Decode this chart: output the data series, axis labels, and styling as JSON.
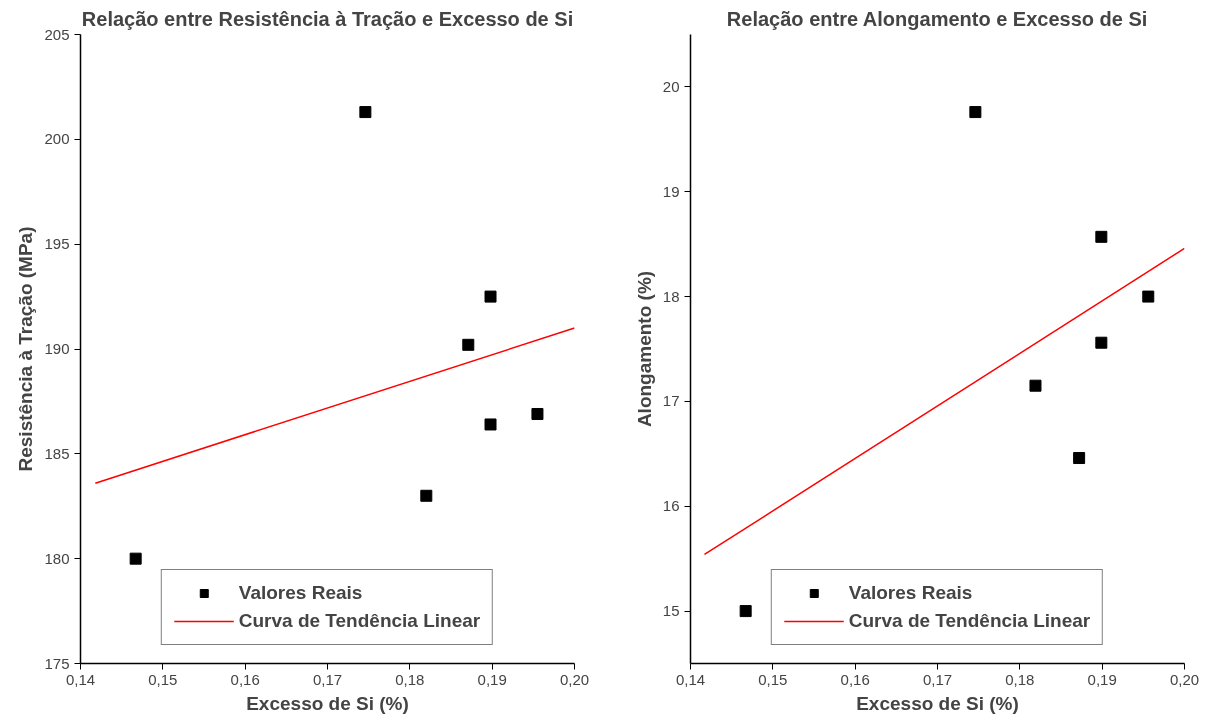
{
  "chart_data": [
    {
      "type": "scatter",
      "title": "Relação entre Resistência à Tração e Excesso de Si",
      "xlabel": "Excesso de Si (%)",
      "ylabel": "Resistência à Tração (MPa)",
      "xlim": [
        0.14,
        0.2
      ],
      "ylim": [
        175,
        205
      ],
      "xticks": [
        {
          "value": 0.14,
          "label": "0,14"
        },
        {
          "value": 0.15,
          "label": "0,15"
        },
        {
          "value": 0.16,
          "label": "0,16"
        },
        {
          "value": 0.17,
          "label": "0,17"
        },
        {
          "value": 0.18,
          "label": "0,18"
        },
        {
          "value": 0.19,
          "label": "0,19"
        },
        {
          "value": 0.2,
          "label": "0,20"
        }
      ],
      "yticks": [
        175,
        180,
        185,
        190,
        195,
        200,
        205
      ],
      "grid": false,
      "legend": "bottom",
      "series": [
        {
          "name": "Valores Reais",
          "marker": "square",
          "color": "#000000",
          "x": [
            0.1467,
            0.1746,
            0.182,
            0.1871,
            0.1898,
            0.1898,
            0.1955
          ],
          "values": [
            180.0,
            201.3,
            183.0,
            190.2,
            192.5,
            186.4,
            186.9
          ]
        },
        {
          "name": "Curva de Tendência Linear",
          "type": "line",
          "color": "#ff0000",
          "line_style": "solid",
          "x": [
            0.1418,
            0.2
          ],
          "values": [
            183.6,
            191.0
          ]
        }
      ]
    },
    {
      "type": "scatter",
      "title": "Relação entre Alongamento e Excesso de Si",
      "xlabel": "Excesso de Si (%)",
      "ylabel": "Alongamento (%)",
      "xlim": [
        0.14,
        0.2
      ],
      "ylim": [
        14.5,
        20.5
      ],
      "xticks": [
        {
          "value": 0.14,
          "label": "0,14"
        },
        {
          "value": 0.15,
          "label": "0,15"
        },
        {
          "value": 0.16,
          "label": "0,16"
        },
        {
          "value": 0.17,
          "label": "0,17"
        },
        {
          "value": 0.18,
          "label": "0,18"
        },
        {
          "value": 0.19,
          "label": "0,19"
        },
        {
          "value": 0.2,
          "label": "0,20"
        }
      ],
      "yticks": [
        15,
        16,
        17,
        18,
        19,
        20
      ],
      "grid": false,
      "legend": "bottom",
      "series": [
        {
          "name": "Valores Reais",
          "marker": "square",
          "color": "#000000",
          "x": [
            0.1467,
            0.1746,
            0.1819,
            0.1872,
            0.1899,
            0.1899,
            0.1956
          ],
          "values": [
            15.0,
            19.76,
            17.15,
            16.46,
            18.57,
            17.56,
            18.0
          ]
        },
        {
          "name": "Curva de Tendência Linear",
          "type": "line",
          "color": "#ff0000",
          "line_style": "solid",
          "x": [
            0.1417,
            0.2
          ],
          "values": [
            15.54,
            18.46
          ]
        }
      ]
    }
  ]
}
